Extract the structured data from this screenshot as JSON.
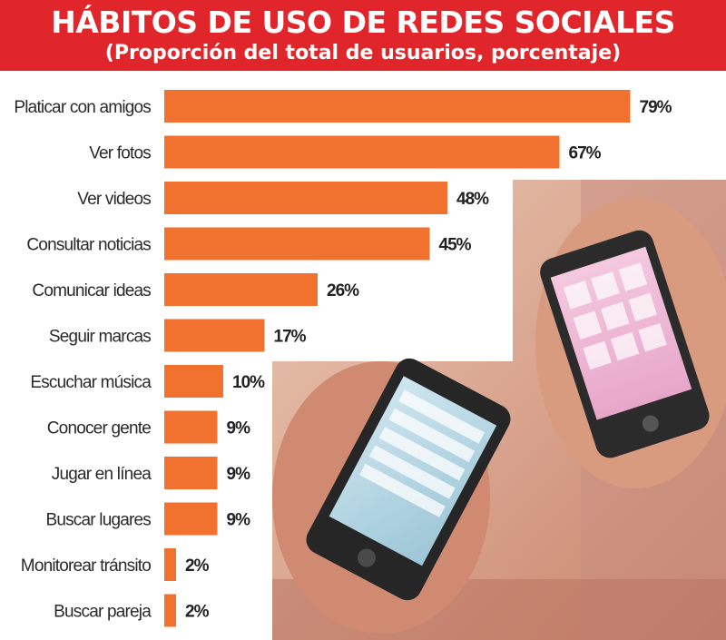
{
  "header": {
    "title": "HÁBITOS DE USO DE REDES SOCIALES",
    "subtitle": "(Proporción del total de usuarios, porcentaje)"
  },
  "colors": {
    "header_bg": "#e1262b",
    "bar": "#f0722e",
    "photo_skin": "#d9907a",
    "phone_body": "#2b2b2b"
  },
  "photo": {
    "icon": "smartphones-in-hands-photo"
  },
  "chart_data": {
    "type": "bar",
    "orientation": "horizontal",
    "categories": [
      "Platicar con amigos",
      "Ver fotos",
      "Ver videos",
      "Consultar noticias",
      "Comunicar ideas",
      "Seguir marcas",
      "Escuchar música",
      "Conocer gente",
      "Jugar en línea",
      "Buscar lugares",
      "Monitorear tránsito",
      "Buscar pareja"
    ],
    "values": [
      79,
      67,
      48,
      45,
      26,
      17,
      10,
      9,
      9,
      9,
      2,
      2
    ],
    "value_labels": [
      "79%",
      "67%",
      "48%",
      "45%",
      "26%",
      "17%",
      "10%",
      "9%",
      "9%",
      "9%",
      "2%",
      "2%"
    ],
    "unit": "%",
    "xlim": [
      0,
      100
    ],
    "grid": false,
    "legend": "none"
  }
}
